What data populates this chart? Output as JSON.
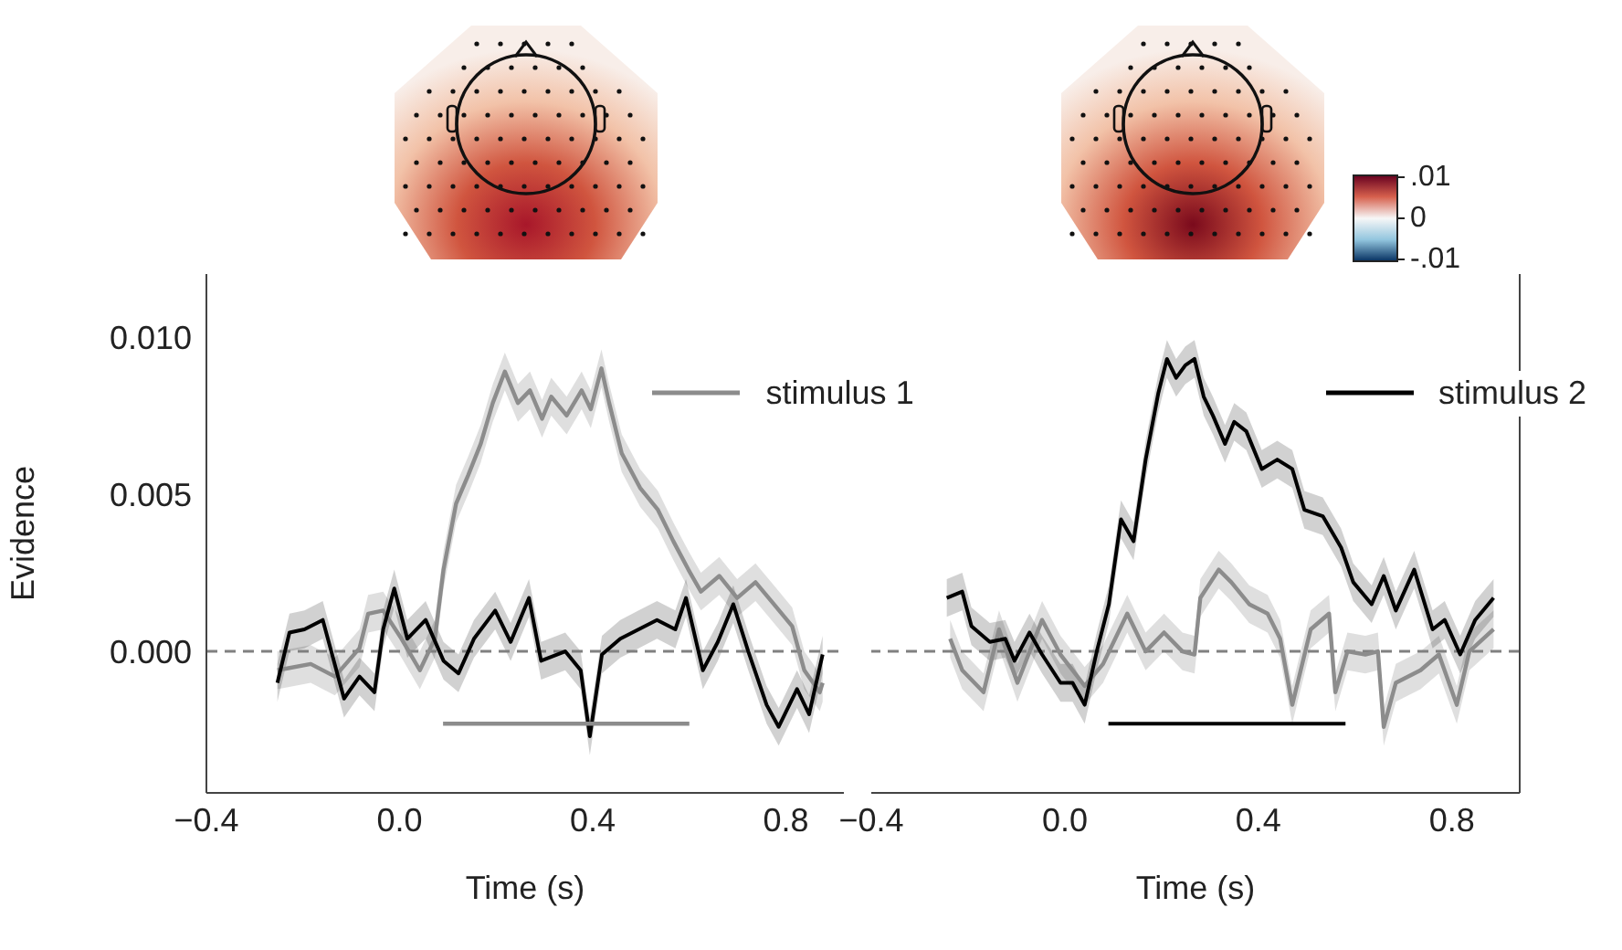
{
  "chart_data": [
    {
      "type": "line",
      "xlabel": "Time (s)",
      "ylabel": "Evidence",
      "xlim": [
        -0.4,
        0.92
      ],
      "ylim": [
        -0.0045,
        0.012
      ],
      "xticks": [
        {
          "value": -0.4,
          "label": "−0.4"
        },
        {
          "value": 0,
          "label": "0.0"
        },
        {
          "value": 0.4,
          "label": "0.4"
        },
        {
          "value": 0.8,
          "label": "0.8"
        }
      ],
      "yticks": [
        {
          "value": 0,
          "label": "0.000"
        },
        {
          "value": 0.005,
          "label": "0.005"
        },
        {
          "value": 0.01,
          "label": "0.010"
        }
      ],
      "legend": "top right",
      "ref_lines": [
        {
          "axis": "y",
          "value": 0,
          "color": "#808080",
          "line_style": "dashed"
        }
      ],
      "series": [
        {
          "name": "stimulus 1",
          "color": "#8c8c8c",
          "x": [
            -0.253,
            -0.184,
            -0.134,
            -0.083,
            -0.065,
            -0.034,
            0.004,
            0.042,
            0.073,
            0.091,
            0.117,
            0.142,
            0.168,
            0.193,
            0.218,
            0.245,
            0.27,
            0.295,
            0.314,
            0.346,
            0.377,
            0.396,
            0.418,
            0.434,
            0.46,
            0.498,
            0.535,
            0.567,
            0.598,
            0.624,
            0.662,
            0.699,
            0.737,
            0.775,
            0.813,
            0.838,
            0.87,
            0.876
          ],
          "values": [
            -0.0006,
            -0.0004,
            -0.0008,
            0.0001,
            0.0012,
            0.0013,
            0.0004,
            -0.0006,
            0.0004,
            0.0026,
            0.0047,
            0.0056,
            0.0066,
            0.0079,
            0.0089,
            0.0079,
            0.0083,
            0.0074,
            0.0081,
            0.0075,
            0.0083,
            0.0077,
            0.009,
            0.0079,
            0.0063,
            0.0052,
            0.0045,
            0.0035,
            0.0026,
            0.0019,
            0.0024,
            0.0017,
            0.0022,
            0.0015,
            0.0008,
            -0.0006,
            -0.0013,
            -0.001
          ],
          "lower": [
            -0.0012,
            -0.001,
            -0.0014,
            -0.0005,
            0.0006,
            0.0007,
            -0.0002,
            -0.0012,
            -0.0002,
            0.002,
            0.0041,
            0.005,
            0.006,
            0.0073,
            0.0083,
            0.0073,
            0.0077,
            0.0068,
            0.0075,
            0.0069,
            0.0077,
            0.0071,
            0.0084,
            0.0073,
            0.0057,
            0.0046,
            0.0039,
            0.0029,
            0.002,
            0.0013,
            0.0018,
            0.0011,
            0.0016,
            0.0009,
            0.0002,
            -0.0012,
            -0.0019,
            -0.0016
          ],
          "upper": [
            0,
            0.0002,
            -0.0002,
            0.0007,
            0.0018,
            0.0019,
            0.001,
            0,
            0.001,
            0.0032,
            0.0053,
            0.0062,
            0.0072,
            0.0085,
            0.0095,
            0.0085,
            0.0089,
            0.008,
            0.0087,
            0.0081,
            0.0089,
            0.0083,
            0.0096,
            0.0085,
            0.0069,
            0.0058,
            0.0051,
            0.0041,
            0.0032,
            0.0025,
            0.003,
            0.0023,
            0.0028,
            0.0021,
            0.0014,
            0,
            -0.0007,
            -0.0004
          ]
        },
        {
          "color": "#000000",
          "x": [
            -0.253,
            -0.228,
            -0.197,
            -0.159,
            -0.115,
            -0.083,
            -0.052,
            -0.034,
            -0.011,
            0.016,
            0.054,
            0.091,
            0.122,
            0.154,
            0.198,
            0.23,
            0.268,
            0.293,
            0.343,
            0.375,
            0.394,
            0.419,
            0.457,
            0.495,
            0.533,
            0.571,
            0.593,
            0.628,
            0.659,
            0.691,
            0.722,
            0.76,
            0.785,
            0.823,
            0.848,
            0.876
          ],
          "values": [
            -0.001,
            0.0006,
            0.0007,
            0.001,
            -0.0015,
            -0.0008,
            -0.0013,
            0.0007,
            0.002,
            0.0004,
            0.001,
            -0.0003,
            -0.0007,
            0.0004,
            0.0013,
            0.0003,
            0.0017,
            -0.0003,
            0,
            -0.0006,
            -0.0027,
            -0.0001,
            0.0004,
            0.0007,
            0.001,
            0.0007,
            0.0017,
            -0.0006,
            0.0003,
            0.0015,
            0,
            -0.0017,
            -0.0024,
            -0.0012,
            -0.002,
            -0.0001
          ],
          "lower": [
            -0.0016,
            0,
            0.0001,
            0.0004,
            -0.0021,
            -0.0014,
            -0.0019,
            0.0001,
            0.0014,
            -0.0002,
            0.0004,
            -0.0009,
            -0.0013,
            -0.0002,
            0.0007,
            -0.0003,
            0.0011,
            -0.0009,
            -0.0006,
            -0.0012,
            -0.0033,
            -0.0007,
            -0.0002,
            0.0001,
            0.0004,
            0.0001,
            0.0011,
            -0.0012,
            -0.0003,
            0.0009,
            -0.0006,
            -0.0023,
            -0.003,
            -0.0018,
            -0.0026,
            -0.0007
          ],
          "upper": [
            -0.0004,
            0.0012,
            0.0013,
            0.0016,
            -0.0009,
            -0.0002,
            -0.0007,
            0.0013,
            0.0026,
            0.001,
            0.0016,
            0.0003,
            -0.0001,
            0.001,
            0.0019,
            0.0009,
            0.0023,
            0.0003,
            0.0006,
            0,
            -0.0021,
            0.0005,
            0.001,
            0.0013,
            0.0016,
            0.0013,
            0.0023,
            0,
            0.0009,
            0.0021,
            0.0006,
            -0.0011,
            -0.0018,
            -0.0006,
            -0.0014,
            0.0005
          ]
        },
        {
          "type": "line",
          "color": "#8c8c8c",
          "x": [
            0.09,
            0.6
          ],
          "values": [
            -0.0023,
            -0.0023
          ]
        }
      ]
    },
    {
      "type": "line",
      "xlabel": "Time (s)",
      "xlim": [
        -0.4,
        0.94
      ],
      "ylim": [
        -0.0045,
        0.012
      ],
      "tick_labels": "x",
      "xticks": [
        {
          "value": -0.4,
          "label": "−0.4"
        },
        {
          "value": 0,
          "label": "0.0"
        },
        {
          "value": 0.4,
          "label": "0.4"
        },
        {
          "value": 0.8,
          "label": "0.8"
        }
      ],
      "legend": "top right",
      "ref_lines": [
        {
          "axis": "y",
          "value": 0,
          "color": "#808080",
          "line_style": "dashed"
        }
      ],
      "annotations": [
        ".01",
        "0",
        "-.01"
      ],
      "series": [
        {
          "color": "#8c8c8c",
          "x": [
            -0.237,
            -0.212,
            -0.168,
            -0.136,
            -0.098,
            -0.047,
            -0.009,
            0.041,
            0.079,
            0.129,
            0.167,
            0.205,
            0.243,
            0.268,
            0.28,
            0.318,
            0.344,
            0.381,
            0.419,
            0.445,
            0.47,
            0.508,
            0.546,
            0.559,
            0.584,
            0.621,
            0.647,
            0.659,
            0.684,
            0.735,
            0.773,
            0.81,
            0.836,
            0.886
          ],
          "values": [
            0.0004,
            -0.0006,
            -0.0013,
            0.0007,
            -0.001,
            0.001,
            -0.0001,
            -0.0011,
            -0.0004,
            0.0012,
            0,
            0.0006,
            0,
            -0.0001,
            0.0017,
            0.0026,
            0.0022,
            0.0015,
            0.0012,
            0.0004,
            -0.0017,
            0.0007,
            0.0012,
            -0.0013,
            0,
            -0.0001,
            0,
            -0.0024,
            -0.001,
            -0.0006,
            -0.0001,
            -0.0017,
            0,
            0.0007
          ],
          "lower": [
            -0.0002,
            -0.0012,
            -0.0019,
            0.0001,
            -0.0016,
            0.0004,
            -0.0007,
            -0.0017,
            -0.001,
            0.0006,
            -0.0006,
            0,
            -0.0006,
            -0.0007,
            0.0011,
            0.002,
            0.0016,
            0.0009,
            0.0006,
            -0.0002,
            -0.0023,
            0.0001,
            0.0006,
            -0.0019,
            -0.0006,
            -0.0007,
            -0.0006,
            -0.003,
            -0.0016,
            -0.0012,
            -0.0007,
            -0.0023,
            -0.0006,
            0.0001
          ],
          "upper": [
            0.001,
            0,
            -0.0007,
            0.0013,
            -0.0004,
            0.0016,
            0.0005,
            -0.0005,
            0.0002,
            0.0018,
            0.0006,
            0.0012,
            0.0006,
            0.0005,
            0.0023,
            0.0032,
            0.0028,
            0.0021,
            0.0018,
            0.001,
            -0.0011,
            0.0013,
            0.0018,
            -0.0007,
            0.0006,
            0.0005,
            0.0006,
            -0.0018,
            -0.0004,
            0,
            0.0005,
            -0.0011,
            0.0006,
            0.0013
          ]
        },
        {
          "name": "stimulus 2",
          "color": "#000000",
          "x": [
            -0.244,
            -0.212,
            -0.193,
            -0.155,
            -0.123,
            -0.104,
            -0.073,
            -0.047,
            -0.009,
            0.016,
            0.041,
            0.066,
            0.091,
            0.116,
            0.142,
            0.167,
            0.193,
            0.211,
            0.23,
            0.249,
            0.268,
            0.287,
            0.306,
            0.331,
            0.35,
            0.375,
            0.407,
            0.439,
            0.47,
            0.495,
            0.533,
            0.571,
            0.596,
            0.634,
            0.659,
            0.684,
            0.722,
            0.76,
            0.785,
            0.817,
            0.848,
            0.886
          ],
          "values": [
            0.0017,
            0.0019,
            0.0008,
            0.0003,
            0.0004,
            -0.0003,
            0.0006,
            -0.0001,
            -0.001,
            -0.001,
            -0.0017,
            0,
            0.0015,
            0.0042,
            0.0035,
            0.0061,
            0.0082,
            0.0093,
            0.0087,
            0.0091,
            0.0093,
            0.0081,
            0.0075,
            0.0066,
            0.0073,
            0.007,
            0.0058,
            0.0061,
            0.0058,
            0.0045,
            0.0043,
            0.0033,
            0.0022,
            0.0015,
            0.0024,
            0.0013,
            0.0026,
            0.0007,
            0.001,
            -0.0001,
            0.001,
            0.0017
          ],
          "lower": [
            0.0011,
            0.0013,
            0.0002,
            -0.0003,
            -0.0002,
            -0.0009,
            0,
            -0.0007,
            -0.0016,
            -0.0016,
            -0.0023,
            -0.0006,
            0.0009,
            0.0036,
            0.0029,
            0.0055,
            0.0076,
            0.0087,
            0.0081,
            0.0085,
            0.0087,
            0.0075,
            0.0069,
            0.006,
            0.0067,
            0.0064,
            0.0052,
            0.0055,
            0.0052,
            0.0039,
            0.0037,
            0.0027,
            0.0016,
            0.0009,
            0.0018,
            0.0007,
            0.002,
            0.0001,
            0.0004,
            -0.0007,
            0.0004,
            0.0011
          ],
          "upper": [
            0.0023,
            0.0025,
            0.0014,
            0.0009,
            0.001,
            0.0003,
            0.0012,
            0.0005,
            -0.0004,
            -0.0004,
            -0.0011,
            0.0006,
            0.0021,
            0.0048,
            0.0041,
            0.0067,
            0.0088,
            0.0099,
            0.0093,
            0.0097,
            0.0099,
            0.0087,
            0.0081,
            0.0072,
            0.0079,
            0.0076,
            0.0064,
            0.0067,
            0.0064,
            0.0051,
            0.0049,
            0.0039,
            0.0028,
            0.0021,
            0.003,
            0.0019,
            0.0032,
            0.0013,
            0.0016,
            0.0005,
            0.0016,
            0.0023
          ]
        },
        {
          "type": "line",
          "color": "#000000",
          "x": [
            0.09,
            0.58
          ],
          "values": [
            -0.0023,
            -0.0023
          ]
        }
      ]
    }
  ]
}
